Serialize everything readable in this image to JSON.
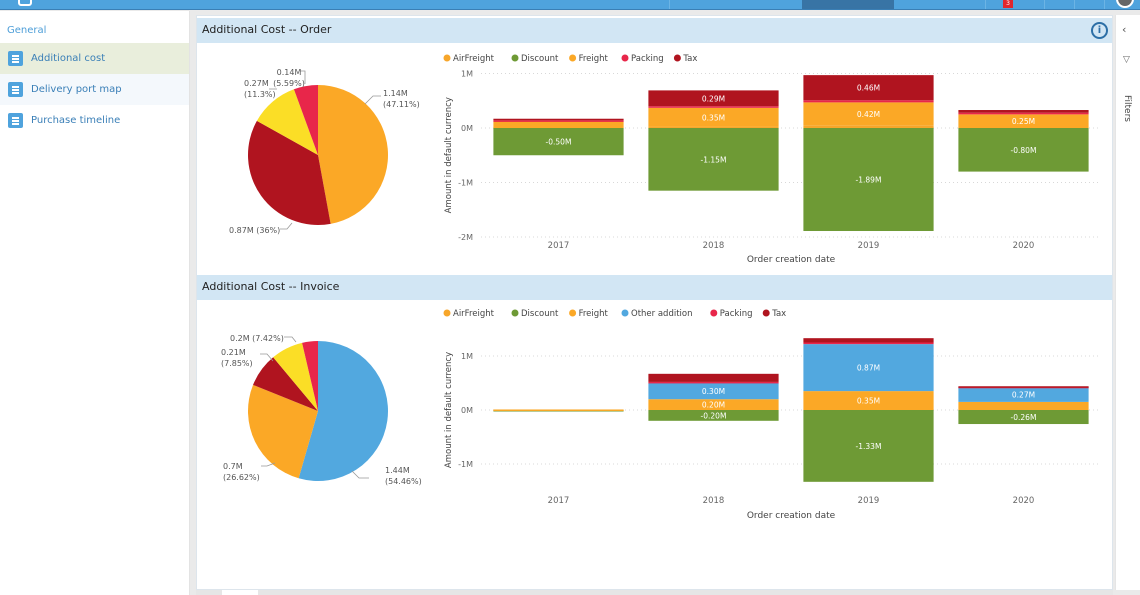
{
  "topbar": {
    "notification_count": "3"
  },
  "sidebar": {
    "group_label": "General",
    "items": [
      {
        "label": "Additional cost",
        "active": true
      },
      {
        "label": "Delivery port map",
        "active": false
      },
      {
        "label": "Purchase timeline",
        "active": false
      }
    ]
  },
  "filters_pane": {
    "label": "Filters",
    "collapse_icon": "chevron-left-icon",
    "filter_icon": "funnel-icon"
  },
  "panels": [
    {
      "title": "Additional Cost -- Order"
    },
    {
      "title": "Additional Cost -- Invoice"
    }
  ],
  "colors": {
    "AirFreight": "#f7a62a",
    "Discount": "#6e9a35",
    "Freight": "#fba826",
    "Other addition": "#52a8df",
    "Packing": "#e8264a",
    "Tax": "#b0141f",
    "Yellow": "#fbde26"
  },
  "chart_data": [
    {
      "type": "pie",
      "title": "Additional Cost -- Order",
      "slices": [
        {
          "label": "1.14M (47.11%)",
          "value": 1.14,
          "percent": 47.11,
          "color": "#fba826"
        },
        {
          "label": "0.87M (36%)",
          "value": 0.87,
          "percent": 36.0,
          "color": "#b0141f"
        },
        {
          "label": "0.27M (11.3%)",
          "value": 0.27,
          "percent": 11.3,
          "color": "#fbde26"
        },
        {
          "label": "0.14M (5.59%)",
          "value": 0.14,
          "percent": 5.59,
          "color": "#e8264a"
        }
      ]
    },
    {
      "type": "bar",
      "stacked": true,
      "title": "Additional Cost -- Order",
      "xlabel": "Order creation date",
      "ylabel": "Amount in default currency",
      "ylim": [
        -2,
        1
      ],
      "yticks": [
        "1M",
        "0M",
        "-1M",
        "-2M"
      ],
      "ytick_values": [
        1,
        0,
        -1,
        -2
      ],
      "grid": true,
      "legend": "top-left",
      "categories": [
        "2017",
        "2018",
        "2019",
        "2020"
      ],
      "series": [
        {
          "name": "AirFreight",
          "color": "#f7a62a",
          "values": [
            0.0,
            0.02,
            0.05,
            0.0
          ],
          "labels": [
            "",
            "",
            "",
            ""
          ]
        },
        {
          "name": "Discount",
          "color": "#6e9a35",
          "values": [
            -0.5,
            -1.15,
            -1.89,
            -0.8
          ],
          "labels": [
            "-0.50M",
            "-1.15M",
            "-1.89M",
            "-0.80M"
          ]
        },
        {
          "name": "Freight",
          "color": "#fba826",
          "values": [
            0.12,
            0.35,
            0.42,
            0.25
          ],
          "labels": [
            "",
            "0.35M",
            "0.42M",
            "0.25M"
          ]
        },
        {
          "name": "Packing",
          "color": "#e8264a",
          "values": [
            0.02,
            0.03,
            0.04,
            0.03
          ],
          "labels": [
            "",
            "",
            "",
            ""
          ]
        },
        {
          "name": "Tax",
          "color": "#b0141f",
          "values": [
            0.03,
            0.29,
            0.46,
            0.05
          ],
          "labels": [
            "",
            "0.29M",
            "0.46M",
            ""
          ]
        }
      ]
    },
    {
      "type": "pie",
      "title": "Additional Cost -- Invoice",
      "slices": [
        {
          "label": "1.44M (54.46%)",
          "value": 1.44,
          "percent": 54.46,
          "color": "#52a8df"
        },
        {
          "label": "0.7M (26.62%)",
          "value": 0.7,
          "percent": 26.62,
          "color": "#fba826"
        },
        {
          "label": "0.21M (7.85%)",
          "value": 0.21,
          "percent": 7.85,
          "color": "#b0141f"
        },
        {
          "label": "0.2M (7.42%)",
          "value": 0.2,
          "percent": 7.42,
          "color": "#fbde26"
        },
        {
          "label": "",
          "value": 0.1,
          "percent": 3.65,
          "color": "#e8264a"
        }
      ]
    },
    {
      "type": "bar",
      "stacked": true,
      "title": "Additional Cost -- Invoice",
      "xlabel": "Order creation date",
      "ylabel": "Amount in default currency",
      "ylim": [
        -1.5,
        1.5
      ],
      "yticks": [
        "1M",
        "0M",
        "-1M"
      ],
      "ytick_values": [
        1,
        0,
        -1
      ],
      "grid": true,
      "legend": "top-left",
      "categories": [
        "2017",
        "2018",
        "2019",
        "2020"
      ],
      "series": [
        {
          "name": "AirFreight",
          "color": "#f7a62a",
          "values": [
            0.0,
            0.0,
            0.0,
            0.0
          ],
          "labels": [
            "",
            "",
            "",
            ""
          ]
        },
        {
          "name": "Discount",
          "color": "#6e9a35",
          "values": [
            -0.01,
            -0.2,
            -1.33,
            -0.26
          ],
          "labels": [
            "",
            "-0.20M",
            "-1.33M",
            "-0.26M"
          ]
        },
        {
          "name": "Freight",
          "color": "#fba826",
          "values": [
            0.01,
            0.2,
            0.35,
            0.15
          ],
          "labels": [
            "",
            "0.20M",
            "0.35M",
            ""
          ]
        },
        {
          "name": "Other addition",
          "color": "#52a8df",
          "values": [
            0.0,
            0.3,
            0.87,
            0.27
          ],
          "labels": [
            "",
            "0.30M",
            "0.87M",
            "0.27M"
          ]
        },
        {
          "name": "Packing",
          "color": "#e8264a",
          "values": [
            0.0,
            0.02,
            0.03,
            0.01
          ],
          "labels": [
            "",
            "",
            "",
            ""
          ]
        },
        {
          "name": "Tax",
          "color": "#b0141f",
          "values": [
            0.0,
            0.15,
            0.08,
            0.01
          ],
          "labels": [
            "",
            "",
            "",
            ""
          ]
        }
      ]
    }
  ]
}
